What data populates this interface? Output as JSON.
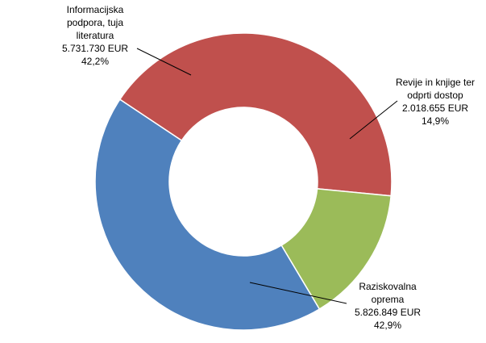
{
  "chart_data": {
    "type": "pie",
    "variant": "donut",
    "slices": [
      {
        "label": [
          "Informacijska",
          "podpora, tuja",
          "literatura"
        ],
        "amount": "5.731.730 EUR",
        "percent_label": "42,2%",
        "value": 42.2,
        "color": "#c0504d"
      },
      {
        "label": [
          "Revije in knjige ter",
          "odprti dostop"
        ],
        "amount": "2.018.655 EUR",
        "percent_label": "14,9%",
        "value": 14.9,
        "color": "#9bbb59"
      },
      {
        "label": [
          "Raziskovalna",
          "oprema"
        ],
        "amount": "5.826.849 EUR",
        "percent_label": "42,9%",
        "value": 42.9,
        "color": "#4f81bd"
      }
    ]
  }
}
